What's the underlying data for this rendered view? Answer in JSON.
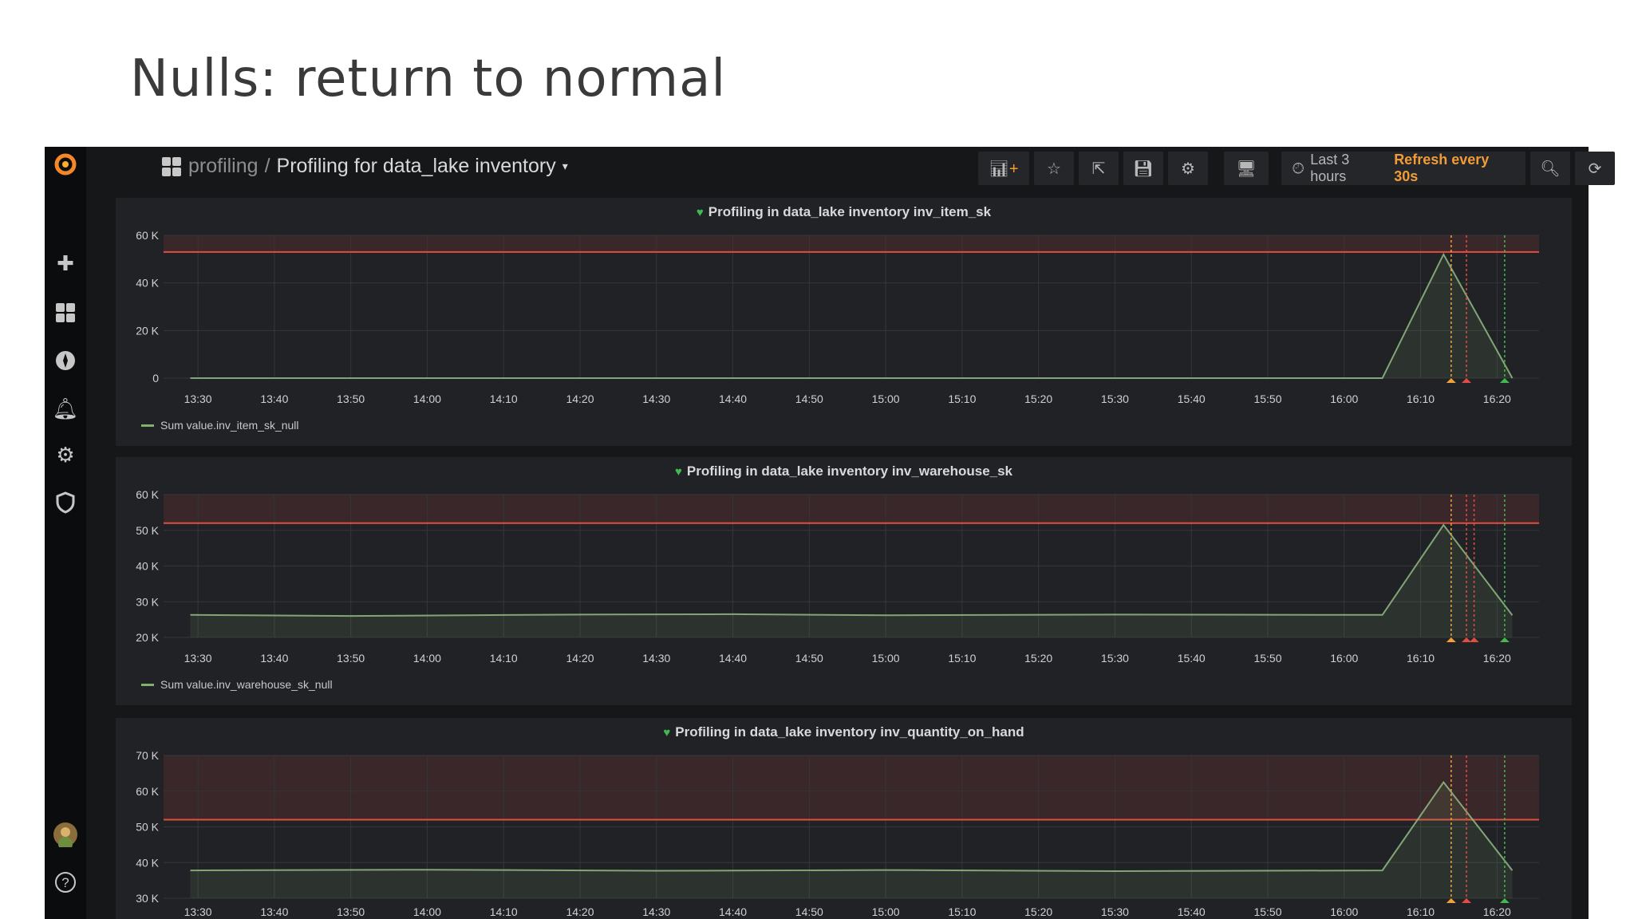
{
  "slide_title": "Nulls: return to normal",
  "breadcrumb": {
    "folder": "profiling",
    "separator": "/",
    "dashboard": "Profiling for data_lake inventory",
    "caret": "▾"
  },
  "toolbar": {
    "time_range": "Last 3 hours",
    "refresh": "Refresh every 30s"
  },
  "sidebar": {
    "icons": [
      "grafana-logo",
      "plus-icon",
      "dashboards-icon",
      "explore-compass-icon",
      "alerting-bell-icon",
      "configuration-gear-icon",
      "shield-icon",
      "user-avatar",
      "help-icon"
    ]
  },
  "colors": {
    "threshold": "#e24d42",
    "series": "#9ac48a",
    "ok": "#3fb950",
    "pending": "#f2a13a",
    "alerting": "#e24d42",
    "refresh": "#f29c38"
  },
  "chart_data": [
    {
      "type": "area",
      "title": "Profiling in data_lake inventory inv_item_sk",
      "legend": "Sum value.inv_item_sk_null",
      "y_unit": "K",
      "ylim": [
        0,
        60
      ],
      "yticks": [
        0,
        20,
        40,
        60
      ],
      "ytick_labels": [
        "0",
        "20 K",
        "40 K",
        "60 K"
      ],
      "xtick_labels": [
        "13:30",
        "13:40",
        "13:50",
        "14:00",
        "14:10",
        "14:20",
        "14:30",
        "14:40",
        "14:50",
        "15:00",
        "15:10",
        "15:20",
        "15:30",
        "15:40",
        "15:50",
        "16:00",
        "16:10",
        "16:20"
      ],
      "xlim": [
        "13:25",
        "16:25"
      ],
      "threshold": 53,
      "points": [
        [
          "13:29",
          0
        ],
        [
          "16:05",
          0
        ],
        [
          "16:13",
          52
        ],
        [
          "16:22",
          0
        ]
      ],
      "annotations": [
        [
          "16:14",
          "pending"
        ],
        [
          "16:16",
          "alerting"
        ],
        [
          "16:21",
          "ok"
        ]
      ]
    },
    {
      "type": "area",
      "title": "Profiling in data_lake inventory inv_warehouse_sk",
      "legend": "Sum value.inv_warehouse_sk_null",
      "ylim": [
        20,
        60
      ],
      "yticks": [
        20,
        30,
        40,
        50,
        60
      ],
      "ytick_labels": [
        "20 K",
        "30 K",
        "40 K",
        "50 K",
        "60 K"
      ],
      "xtick_labels": [
        "13:30",
        "13:40",
        "13:50",
        "14:00",
        "14:10",
        "14:20",
        "14:30",
        "14:40",
        "14:50",
        "15:00",
        "15:10",
        "15:20",
        "15:30",
        "15:40",
        "15:50",
        "16:00",
        "16:10",
        "16:20"
      ],
      "xlim": [
        "13:25",
        "16:25"
      ],
      "threshold": 52,
      "points": [
        [
          "13:29",
          26.3
        ],
        [
          "13:50",
          26
        ],
        [
          "14:20",
          26.4
        ],
        [
          "14:40",
          26.5
        ],
        [
          "15:00",
          26.2
        ],
        [
          "15:30",
          26.4
        ],
        [
          "16:05",
          26.3
        ],
        [
          "16:13",
          51.5
        ],
        [
          "16:22",
          26.2
        ]
      ],
      "annotations": [
        [
          "16:14",
          "pending"
        ],
        [
          "16:16",
          "alerting"
        ],
        [
          "16:17",
          "alerting"
        ],
        [
          "16:21",
          "ok"
        ]
      ]
    },
    {
      "type": "area",
      "title": "Profiling in data_lake inventory inv_quantity_on_hand",
      "ylim": [
        30,
        70
      ],
      "yticks": [
        30,
        40,
        50,
        60,
        70
      ],
      "ytick_labels": [
        "30 K",
        "40 K",
        "50 K",
        "60 K",
        "70 K"
      ],
      "xtick_labels": [
        "13:30",
        "13:40",
        "13:50",
        "14:00",
        "14:10",
        "14:20",
        "14:30",
        "14:40",
        "14:50",
        "15:00",
        "15:10",
        "15:20",
        "15:30",
        "15:40",
        "15:50",
        "16:00",
        "16:10",
        "16:20"
      ],
      "xlim": [
        "13:25",
        "16:25"
      ],
      "threshold": 52,
      "points": [
        [
          "13:29",
          37.8
        ],
        [
          "14:00",
          38
        ],
        [
          "14:30",
          37.7
        ],
        [
          "15:00",
          37.9
        ],
        [
          "15:30",
          37.6
        ],
        [
          "16:05",
          37.8
        ],
        [
          "16:13",
          62.5
        ],
        [
          "16:22",
          37.8
        ]
      ],
      "annotations": [
        [
          "16:14",
          "pending"
        ],
        [
          "16:16",
          "alerting"
        ],
        [
          "16:21",
          "ok"
        ]
      ]
    }
  ]
}
